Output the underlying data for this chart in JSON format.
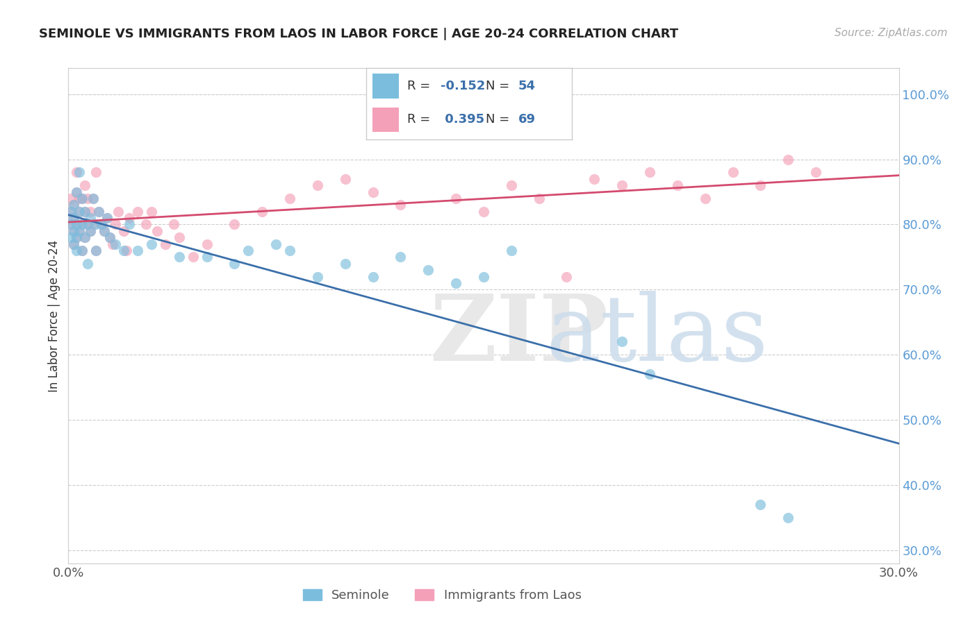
{
  "title": "SEMINOLE VS IMMIGRANTS FROM LAOS IN LABOR FORCE | AGE 20-24 CORRELATION CHART",
  "source": "Source: ZipAtlas.com",
  "ylabel": "In Labor Force | Age 20-24",
  "xlim": [
    0.0,
    0.3
  ],
  "ylim": [
    0.28,
    1.04
  ],
  "xticks": [
    0.0,
    0.05,
    0.1,
    0.15,
    0.2,
    0.25,
    0.3
  ],
  "xticklabels": [
    "0.0%",
    "",
    "",
    "",
    "",
    "",
    "30.0%"
  ],
  "yticks": [
    0.3,
    0.4,
    0.5,
    0.6,
    0.7,
    0.8,
    0.9,
    1.0
  ],
  "yticklabels": [
    "30.0%",
    "40.0%",
    "50.0%",
    "60.0%",
    "70.0%",
    "80.0%",
    "90.0%",
    "100.0%"
  ],
  "blue_color": "#7bbddd",
  "pink_color": "#f4a0b8",
  "blue_line_color": "#3a6faa",
  "pink_line_color": "#d44a6e",
  "blue_R": -0.152,
  "blue_N": 54,
  "pink_R": 0.395,
  "pink_N": 69,
  "seminole_x": [
    0.001,
    0.001,
    0.001,
    0.002,
    0.002,
    0.002,
    0.002,
    0.003,
    0.003,
    0.003,
    0.003,
    0.004,
    0.004,
    0.004,
    0.005,
    0.005,
    0.005,
    0.006,
    0.006,
    0.007,
    0.007,
    0.008,
    0.008,
    0.009,
    0.01,
    0.01,
    0.011,
    0.012,
    0.013,
    0.014,
    0.015,
    0.017,
    0.02,
    0.022,
    0.025,
    0.03,
    0.04,
    0.05,
    0.06,
    0.065,
    0.075,
    0.08,
    0.09,
    0.1,
    0.11,
    0.12,
    0.13,
    0.14,
    0.15,
    0.16,
    0.2,
    0.21,
    0.25,
    0.26
  ],
  "seminole_y": [
    0.8,
    0.82,
    0.78,
    0.81,
    0.79,
    0.83,
    0.77,
    0.8,
    0.85,
    0.78,
    0.76,
    0.82,
    0.79,
    0.88,
    0.8,
    0.84,
    0.76,
    0.82,
    0.78,
    0.8,
    0.74,
    0.81,
    0.79,
    0.84,
    0.8,
    0.76,
    0.82,
    0.8,
    0.79,
    0.81,
    0.78,
    0.77,
    0.76,
    0.8,
    0.76,
    0.77,
    0.75,
    0.75,
    0.74,
    0.76,
    0.77,
    0.76,
    0.72,
    0.74,
    0.72,
    0.75,
    0.73,
    0.71,
    0.72,
    0.76,
    0.62,
    0.57,
    0.37,
    0.35
  ],
  "laos_x": [
    0.001,
    0.001,
    0.001,
    0.002,
    0.002,
    0.002,
    0.002,
    0.003,
    0.003,
    0.003,
    0.003,
    0.004,
    0.004,
    0.004,
    0.005,
    0.005,
    0.005,
    0.006,
    0.006,
    0.006,
    0.007,
    0.007,
    0.008,
    0.008,
    0.009,
    0.009,
    0.01,
    0.01,
    0.011,
    0.012,
    0.013,
    0.014,
    0.015,
    0.016,
    0.017,
    0.018,
    0.02,
    0.021,
    0.022,
    0.025,
    0.028,
    0.03,
    0.032,
    0.035,
    0.038,
    0.04,
    0.045,
    0.05,
    0.06,
    0.07,
    0.08,
    0.09,
    0.1,
    0.11,
    0.12,
    0.14,
    0.15,
    0.16,
    0.17,
    0.18,
    0.19,
    0.2,
    0.21,
    0.22,
    0.23,
    0.24,
    0.25,
    0.26,
    0.27
  ],
  "laos_y": [
    0.82,
    0.8,
    0.84,
    0.81,
    0.79,
    0.83,
    0.77,
    0.8,
    0.85,
    0.78,
    0.88,
    0.82,
    0.79,
    0.84,
    0.8,
    0.84,
    0.76,
    0.82,
    0.86,
    0.78,
    0.8,
    0.84,
    0.82,
    0.79,
    0.84,
    0.8,
    0.76,
    0.88,
    0.82,
    0.8,
    0.79,
    0.81,
    0.78,
    0.77,
    0.8,
    0.82,
    0.79,
    0.76,
    0.81,
    0.82,
    0.8,
    0.82,
    0.79,
    0.77,
    0.8,
    0.78,
    0.75,
    0.77,
    0.8,
    0.82,
    0.84,
    0.86,
    0.87,
    0.85,
    0.83,
    0.84,
    0.82,
    0.86,
    0.84,
    0.72,
    0.87,
    0.86,
    0.88,
    0.86,
    0.84,
    0.88,
    0.86,
    0.9,
    0.88
  ],
  "background_color": "#ffffff",
  "grid_color": "#cccccc",
  "legend_blue_label": "Seminole",
  "legend_pink_label": "Immigrants from Laos"
}
